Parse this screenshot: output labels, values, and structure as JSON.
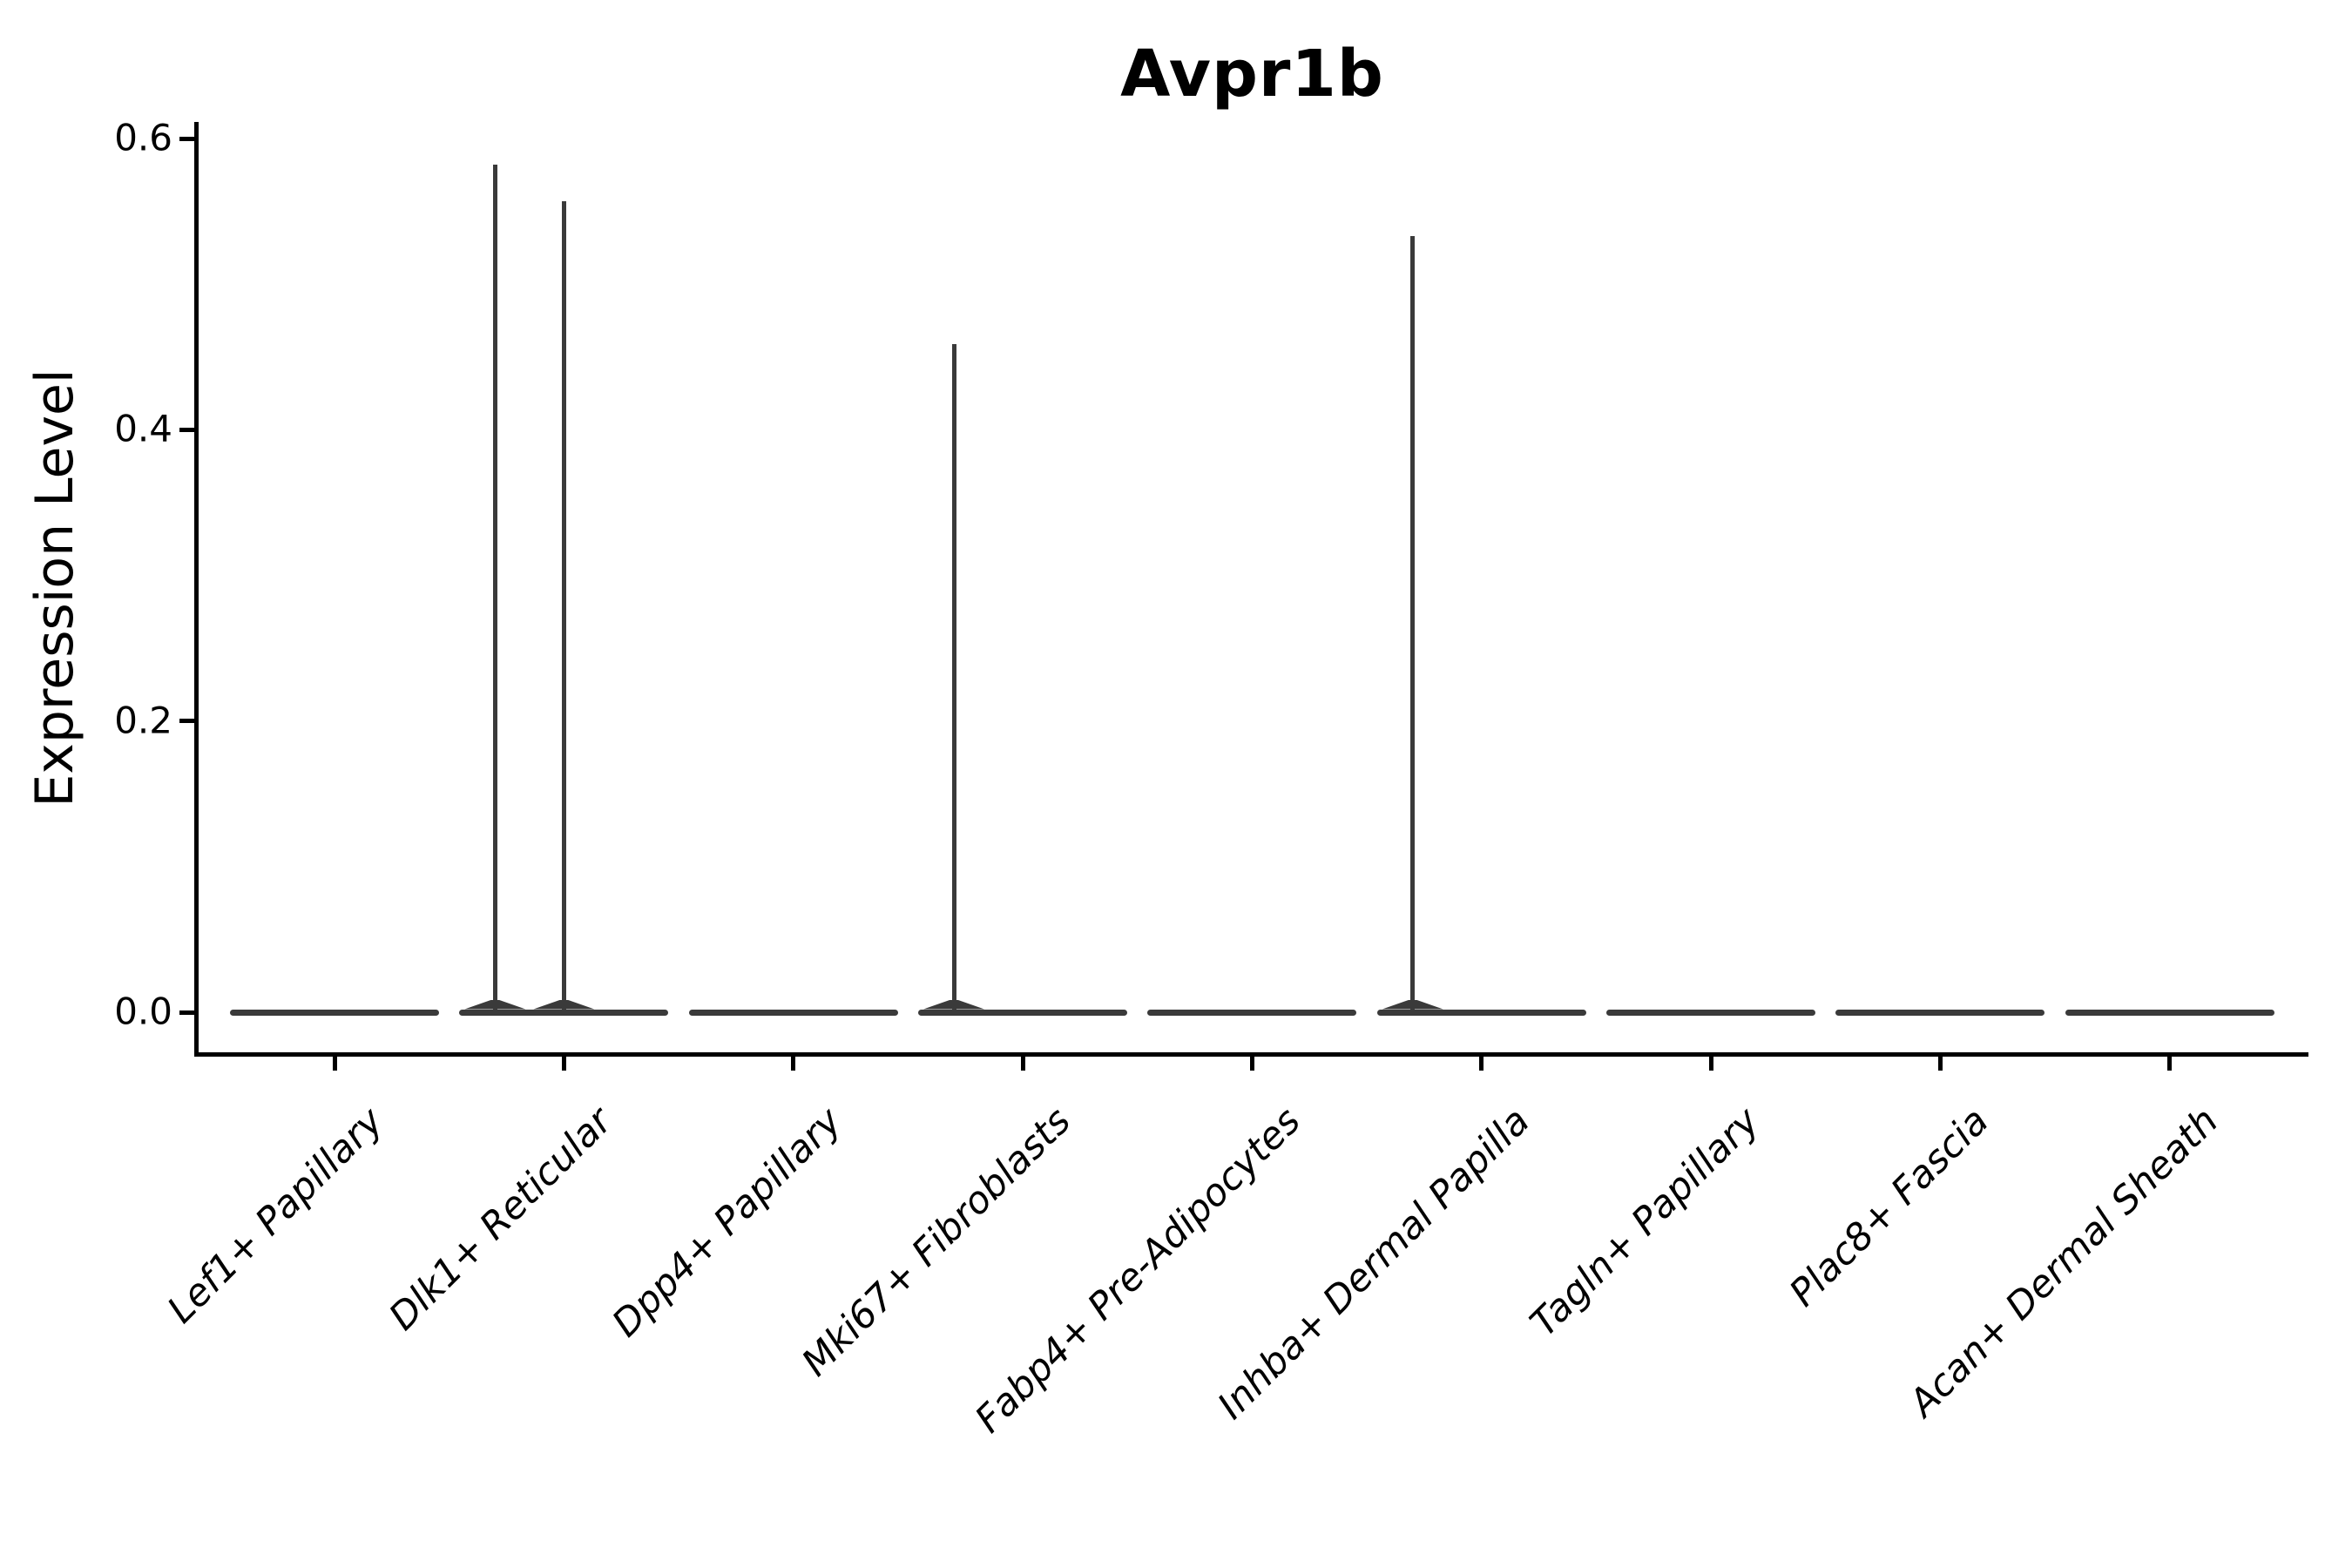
{
  "chart_data": {
    "type": "violin",
    "title": "Avpr1b",
    "ylabel": "Expression Level",
    "xlabel": "",
    "categories": [
      "Lef1+ Papillary",
      "Dlk1+ Reticular",
      "Dpp4+ Papillary",
      "Mki67+ Fibroblasts",
      "Fabp4+ Pre-Adipocytes",
      "Inhba+ Dermal Papilla",
      "Tagln+ Papillary",
      "Plac8+ Fascia",
      "Acan+ Dermal Sheath"
    ],
    "yticks": [
      0.0,
      0.2,
      0.4,
      0.6
    ],
    "ytick_labels": [
      "0.0",
      "0.2",
      "0.4",
      "0.6"
    ],
    "ylim": [
      -0.029,
      0.612
    ],
    "grid": false,
    "legend_position": "none",
    "violin_color": "#3a3a3a",
    "axis_color": "#000000",
    "violins": [
      {
        "category": "Lef1+ Papillary",
        "body": "flat-at-zero",
        "max_value": 0.0,
        "spikes": []
      },
      {
        "category": "Dlk1+ Reticular",
        "body": "flat-at-zero",
        "max_value": 0.582,
        "spikes": [
          {
            "value": 0.582,
            "offset_frac": -0.3
          },
          {
            "value": 0.557,
            "offset_frac": 0.0
          }
        ]
      },
      {
        "category": "Dpp4+ Papillary",
        "body": "flat-at-zero",
        "max_value": 0.0,
        "spikes": []
      },
      {
        "category": "Mki67+ Fibroblasts",
        "body": "flat-at-zero",
        "max_value": 0.459,
        "spikes": [
          {
            "value": 0.459,
            "offset_frac": -0.3
          }
        ]
      },
      {
        "category": "Fabp4+ Pre-Adipocytes",
        "body": "flat-at-zero",
        "max_value": 0.0,
        "spikes": []
      },
      {
        "category": "Inhba+ Dermal Papilla",
        "body": "flat-at-zero",
        "max_value": 0.533,
        "spikes": [
          {
            "value": 0.533,
            "offset_frac": -0.3
          }
        ]
      },
      {
        "category": "Tagln+ Papillary",
        "body": "flat-at-zero",
        "max_value": 0.0,
        "spikes": []
      },
      {
        "category": "Plac8+ Fascia",
        "body": "flat-at-zero",
        "max_value": 0.0,
        "spikes": []
      },
      {
        "category": "Acan+ Dermal Sheath",
        "body": "flat-at-zero",
        "max_value": 0.0,
        "spikes": []
      }
    ]
  }
}
